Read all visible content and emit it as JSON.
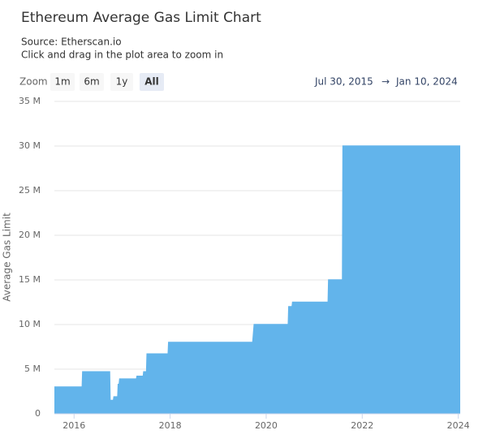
{
  "chart_data": {
    "type": "area",
    "title": "Ethereum Average Gas Limit Chart",
    "source": "Source: Etherscan.io",
    "subtitle": "Click and drag in the plot area to zoom in",
    "zoom_label": "Zoom",
    "zoom_buttons": [
      "1m",
      "6m",
      "1y",
      "All"
    ],
    "selected_button": 3,
    "date_from": "Jul 30, 2015",
    "date_arrow": "→",
    "date_to": "Jan 10, 2024",
    "y_label": "Average Gas Limit",
    "color": "#62b4eb",
    "grid": true,
    "xlim": [
      2015.59,
      2024.04
    ],
    "xticks": [
      2016,
      2018,
      2020,
      2022,
      2024
    ],
    "ylim": [
      0,
      35000000
    ],
    "yticks": [
      0,
      {
        "value": 5000000,
        "label": "5 M"
      },
      {
        "value": 10000000,
        "label": "10 M"
      },
      {
        "value": 15000000,
        "label": "15 M"
      },
      {
        "value": 20000000,
        "label": "20 M"
      },
      {
        "value": 25000000,
        "label": "25 M"
      },
      {
        "value": 30000000,
        "label": "30 M"
      },
      {
        "value": 35000000,
        "label": "35 M"
      }
    ],
    "x": [
      2015.59,
      2016.17,
      2016.18,
      2016.74,
      2016.75,
      2016.82,
      2016.83,
      2016.91,
      2016.92,
      2016.94,
      2016.95,
      2017.3,
      2017.31,
      2017.44,
      2017.45,
      2017.51,
      2017.52,
      2017.96,
      2017.97,
      2019.72,
      2019.75,
      2020.46,
      2020.47,
      2020.54,
      2020.55,
      2021.29,
      2021.3,
      2021.59,
      2021.6,
      2024.04
    ],
    "values": [
      3000000,
      3000000,
      4700000,
      4700000,
      1500000,
      1500000,
      1900000,
      1900000,
      3300000,
      3300000,
      3900000,
      3900000,
      4200000,
      4200000,
      4700000,
      4700000,
      6700000,
      6700000,
      8000000,
      8000000,
      10000000,
      10000000,
      12000000,
      12000000,
      12500000,
      12500000,
      15000000,
      15000000,
      30000000,
      30000000
    ]
  }
}
